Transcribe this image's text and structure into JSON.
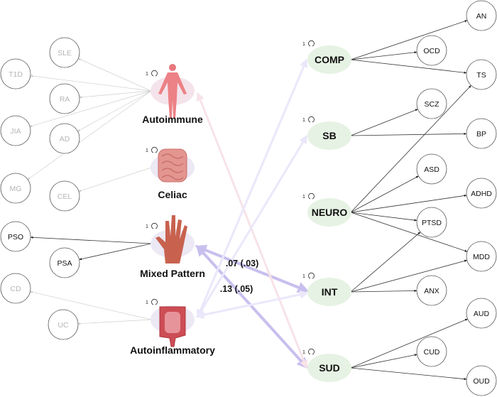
{
  "left_factors": [
    {
      "id": "autoimmune",
      "label": "Autoimmune",
      "variance": "1",
      "icon": "human-body-icon",
      "active": false
    },
    {
      "id": "celiac",
      "label": "Celiac",
      "variance": "1",
      "icon": "intestine-icon",
      "active": false
    },
    {
      "id": "mixed",
      "label": "Mixed Pattern",
      "variance": "1",
      "icon": "hand-icon",
      "active": true
    },
    {
      "id": "autoinflammatory",
      "label": "Autoinflammatory",
      "variance": "1",
      "icon": "colon-icon",
      "active": false
    }
  ],
  "right_factors": [
    {
      "id": "comp",
      "label": "COMP",
      "variance": "1"
    },
    {
      "id": "sb",
      "label": "SB",
      "variance": "1"
    },
    {
      "id": "neuro",
      "label": "NEURO",
      "variance": "1"
    },
    {
      "id": "int",
      "label": "INT",
      "variance": "1"
    },
    {
      "id": "sud",
      "label": "SUD",
      "variance": "1"
    }
  ],
  "indicators": [
    {
      "id": "SLE",
      "label": "SLE",
      "factor": "autoimmune",
      "faded": true
    },
    {
      "id": "T1D",
      "label": "T1D",
      "factor": "autoimmune",
      "faded": true
    },
    {
      "id": "RA",
      "label": "RA",
      "factor": "autoimmune",
      "faded": true
    },
    {
      "id": "JIA",
      "label": "JIA",
      "factor": "autoimmune",
      "faded": true
    },
    {
      "id": "AD",
      "label": "AD",
      "factor": "autoimmune",
      "faded": true
    },
    {
      "id": "MG",
      "label": "MG",
      "factor": "autoimmune",
      "faded": true
    },
    {
      "id": "CEL",
      "label": "CEL",
      "factor": "celiac",
      "faded": true
    },
    {
      "id": "PSO",
      "label": "PSO",
      "factor": "mixed",
      "faded": false
    },
    {
      "id": "PSA",
      "label": "PSA",
      "factor": "mixed",
      "faded": false
    },
    {
      "id": "CD",
      "label": "CD",
      "factor": "autoinflammatory",
      "faded": true
    },
    {
      "id": "UC",
      "label": "UC",
      "factor": "autoinflammatory",
      "faded": true
    },
    {
      "id": "AN",
      "label": "AN",
      "factor": "comp",
      "faded": false
    },
    {
      "id": "OCD",
      "label": "OCD",
      "factor": "comp",
      "faded": false
    },
    {
      "id": "TS",
      "label": "TS",
      "factor": "comp",
      "faded": false
    },
    {
      "id": "SCZ",
      "label": "SCZ",
      "factor": "sb",
      "faded": false
    },
    {
      "id": "BP",
      "label": "BP",
      "factor": "sb",
      "faded": false
    },
    {
      "id": "ASD",
      "label": "ASD",
      "factor": "neuro",
      "faded": false
    },
    {
      "id": "ADHD",
      "label": "ADHD",
      "factor": "neuro",
      "faded": false
    },
    {
      "id": "PTSD",
      "label": "PTSD",
      "factor": "neuro",
      "faded": false
    },
    {
      "id": "MDD",
      "label": "MDD",
      "factor": "neuro",
      "faded": false
    },
    {
      "id": "ANX",
      "label": "ANX",
      "factor": "int",
      "faded": false
    },
    {
      "id": "AUD",
      "label": "AUD",
      "factor": "sud",
      "faded": false
    },
    {
      "id": "CUD",
      "label": "CUD",
      "factor": "sud",
      "faded": false
    },
    {
      "id": "OUD",
      "label": "OUD",
      "factor": "sud",
      "faded": false
    }
  ],
  "extra_loadings": [
    {
      "from": "neuro",
      "to": "TS"
    },
    {
      "from": "int",
      "to": "PTSD"
    },
    {
      "from": "int",
      "to": "MDD"
    }
  ],
  "correlations": [
    {
      "from": "mixed",
      "to": "int",
      "label": ".07 (.03)",
      "significant": true
    },
    {
      "from": "mixed",
      "to": "sud",
      "label": ".13 (.05)",
      "significant": true
    },
    {
      "from": "autoimmune",
      "to": "sud",
      "label": "",
      "significant": false
    },
    {
      "from": "autoinflammatory",
      "to": "comp",
      "label": "",
      "significant": false
    },
    {
      "from": "autoinflammatory",
      "to": "sb",
      "label": "",
      "significant": false
    },
    {
      "from": "autoinflammatory",
      "to": "int",
      "label": "",
      "significant": false
    }
  ],
  "colors": {
    "significant": "#c9bfee",
    "faint_purple": "#ebe7fa",
    "faint_pink": "#f7e3e8",
    "right_factor_fill": "#e6f2e3",
    "left_factor_fill": "#ece8f4",
    "faded_text": "#b5b5b5"
  }
}
